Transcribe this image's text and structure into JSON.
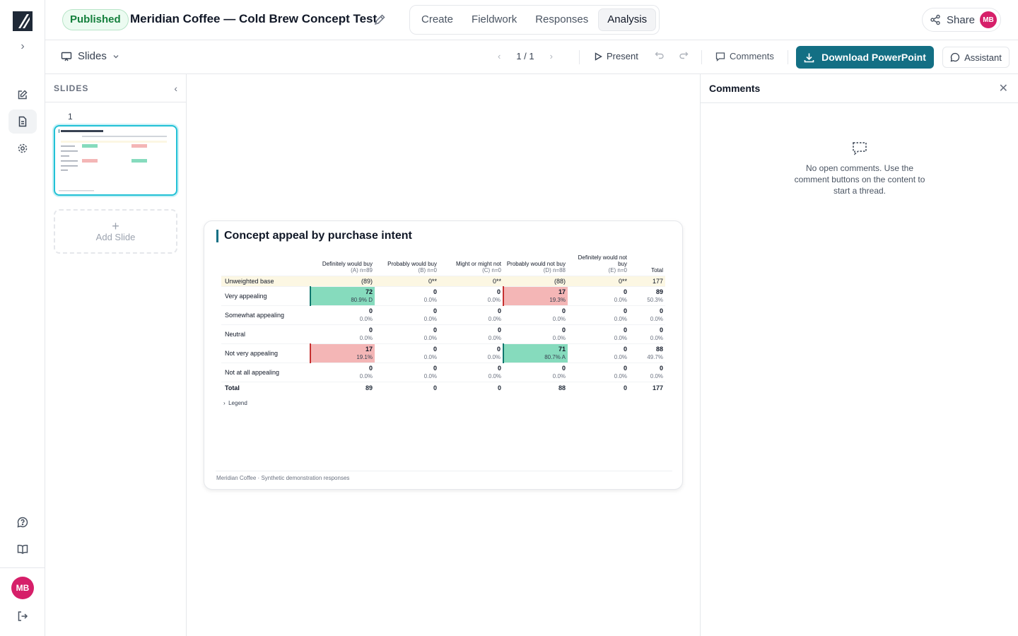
{
  "header": {
    "status_badge": "Published",
    "title": "Meridian Coffee — Cold Brew Concept Test",
    "tabs": [
      "Create",
      "Fieldwork",
      "Responses",
      "Analysis"
    ],
    "active_tab": "Analysis",
    "share_label": "Share",
    "user_initials": "MB"
  },
  "toolbar": {
    "view_label": "Slides",
    "pager": "1 / 1",
    "present_label": "Present",
    "comments_label": "Comments",
    "download_label": "Download PowerPoint",
    "assistant_label": "Assistant"
  },
  "slides_panel": {
    "title": "SLIDES",
    "slide_number": "1",
    "add_slide_label": "Add Slide"
  },
  "slide": {
    "title": "Concept appeal by purchase intent",
    "legend_label": "Legend",
    "footer": "Meridian Coffee · Synthetic demonstration responses",
    "columns": [
      {
        "label": "Definitely would buy",
        "sub": "(A) n=89"
      },
      {
        "label": "Probably would buy",
        "sub": "(B) n=0"
      },
      {
        "label": "Might or might not",
        "sub": "(C) n=0"
      },
      {
        "label": "Probably would not buy",
        "sub": "(D) n=88"
      },
      {
        "label": "Definitely would not buy",
        "sub": "(E) n=0"
      },
      {
        "label": "Total",
        "sub": ""
      }
    ],
    "base_row": {
      "label": "Unweighted base",
      "values": [
        "(89)",
        "0**",
        "0**",
        "(88)",
        "0**",
        "177"
      ]
    },
    "rows": [
      {
        "label": "Very appealing",
        "cells": [
          {
            "count": "72",
            "pct": "80.9% D",
            "hl": "hi"
          },
          {
            "count": "0",
            "pct": "0.0%",
            "hl": ""
          },
          {
            "count": "0",
            "pct": "0.0%",
            "hl": ""
          },
          {
            "count": "17",
            "pct": "19.3%",
            "hl": "lo"
          },
          {
            "count": "0",
            "pct": "0.0%",
            "hl": ""
          },
          {
            "count": "89",
            "pct": "50.3%",
            "hl": ""
          }
        ]
      },
      {
        "label": "Somewhat appealing",
        "cells": [
          {
            "count": "0",
            "pct": "0.0%",
            "hl": ""
          },
          {
            "count": "0",
            "pct": "0.0%",
            "hl": ""
          },
          {
            "count": "0",
            "pct": "0.0%",
            "hl": ""
          },
          {
            "count": "0",
            "pct": "0.0%",
            "hl": ""
          },
          {
            "count": "0",
            "pct": "0.0%",
            "hl": ""
          },
          {
            "count": "0",
            "pct": "0.0%",
            "hl": ""
          }
        ]
      },
      {
        "label": "Neutral",
        "cells": [
          {
            "count": "0",
            "pct": "0.0%",
            "hl": ""
          },
          {
            "count": "0",
            "pct": "0.0%",
            "hl": ""
          },
          {
            "count": "0",
            "pct": "0.0%",
            "hl": ""
          },
          {
            "count": "0",
            "pct": "0.0%",
            "hl": ""
          },
          {
            "count": "0",
            "pct": "0.0%",
            "hl": ""
          },
          {
            "count": "0",
            "pct": "0.0%",
            "hl": ""
          }
        ]
      },
      {
        "label": "Not very appealing",
        "cells": [
          {
            "count": "17",
            "pct": "19.1%",
            "hl": "lo"
          },
          {
            "count": "0",
            "pct": "0.0%",
            "hl": ""
          },
          {
            "count": "0",
            "pct": "0.0%",
            "hl": ""
          },
          {
            "count": "71",
            "pct": "80.7% A",
            "hl": "hi"
          },
          {
            "count": "0",
            "pct": "0.0%",
            "hl": ""
          },
          {
            "count": "88",
            "pct": "49.7%",
            "hl": ""
          }
        ]
      },
      {
        "label": "Not at all appealing",
        "cells": [
          {
            "count": "0",
            "pct": "0.0%",
            "hl": ""
          },
          {
            "count": "0",
            "pct": "0.0%",
            "hl": ""
          },
          {
            "count": "0",
            "pct": "0.0%",
            "hl": ""
          },
          {
            "count": "0",
            "pct": "0.0%",
            "hl": ""
          },
          {
            "count": "0",
            "pct": "0.0%",
            "hl": ""
          },
          {
            "count": "0",
            "pct": "0.0%",
            "hl": ""
          }
        ]
      }
    ],
    "total_row": {
      "label": "Total",
      "values": [
        "89",
        "0",
        "0",
        "88",
        "0",
        "177"
      ]
    }
  },
  "comments_panel": {
    "title": "Comments",
    "empty_text": "No open comments. Use the comment buttons on the content to start a thread."
  },
  "colors": {
    "accent": "#136f84",
    "avatar": "#d61f69",
    "highlight_high": "#86dbbd",
    "highlight_low": "#f4b6b6",
    "base_row": "#fcf7e3"
  }
}
